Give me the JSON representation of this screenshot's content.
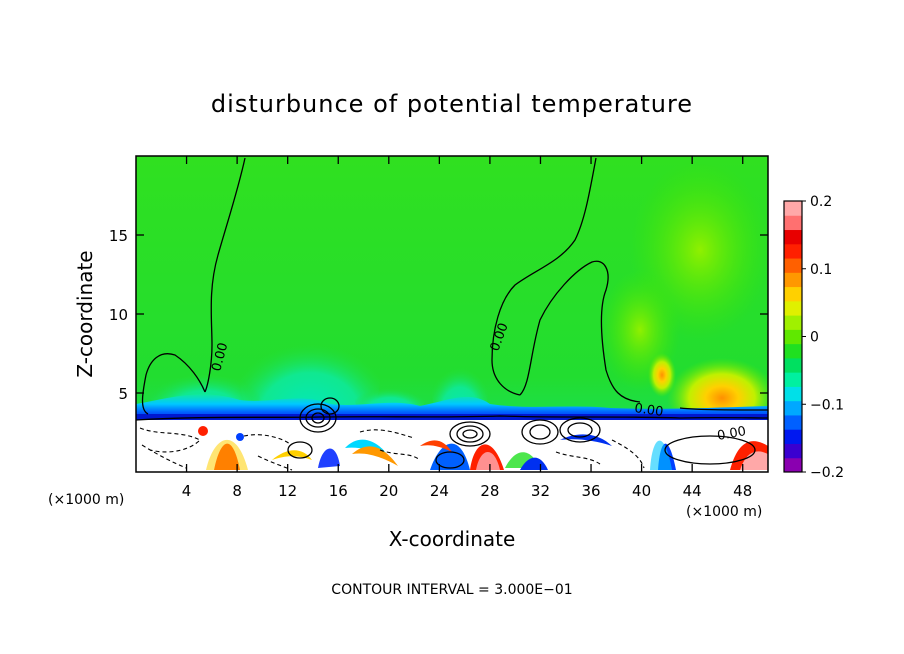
{
  "chart_data": {
    "type": "heatmap",
    "title": "disturbunce of potential temperature",
    "xlabel": "X-coordinate",
    "ylabel": "Z-coordinate",
    "x_unit_left": "(×1000 m)",
    "x_unit_right": "(×1000 m)",
    "xlim": [
      0,
      50
    ],
    "ylim": [
      0,
      20
    ],
    "x_ticks": [
      4,
      8,
      12,
      16,
      20,
      24,
      28,
      32,
      36,
      40,
      44,
      48
    ],
    "y_ticks": [
      5,
      10,
      15
    ],
    "colorbar": {
      "range": [
        -0.2,
        0.2
      ],
      "tick_values": [
        0.2,
        0.1,
        0,
        -0.1,
        -0.2
      ],
      "tick_labels": [
        "0.2",
        "0.1",
        "0",
        "−0.1",
        "−0.2"
      ],
      "colors": [
        "#8a00b0",
        "#3a00d0",
        "#0018f0",
        "#0060ff",
        "#00a8ff",
        "#00e0e8",
        "#00f0a0",
        "#00e060",
        "#20e020",
        "#60e800",
        "#a0f000",
        "#e0f000",
        "#ffd000",
        "#ff9800",
        "#ff6000",
        "#ff2000",
        "#e80000",
        "#ff7070",
        "#ffa8a8"
      ]
    },
    "contour_labels": [
      "0.00",
      "0.00",
      "0.00",
      "0.00"
    ],
    "contour_interval_text": "CONTOUR INTERVAL = 3.000E−01"
  }
}
